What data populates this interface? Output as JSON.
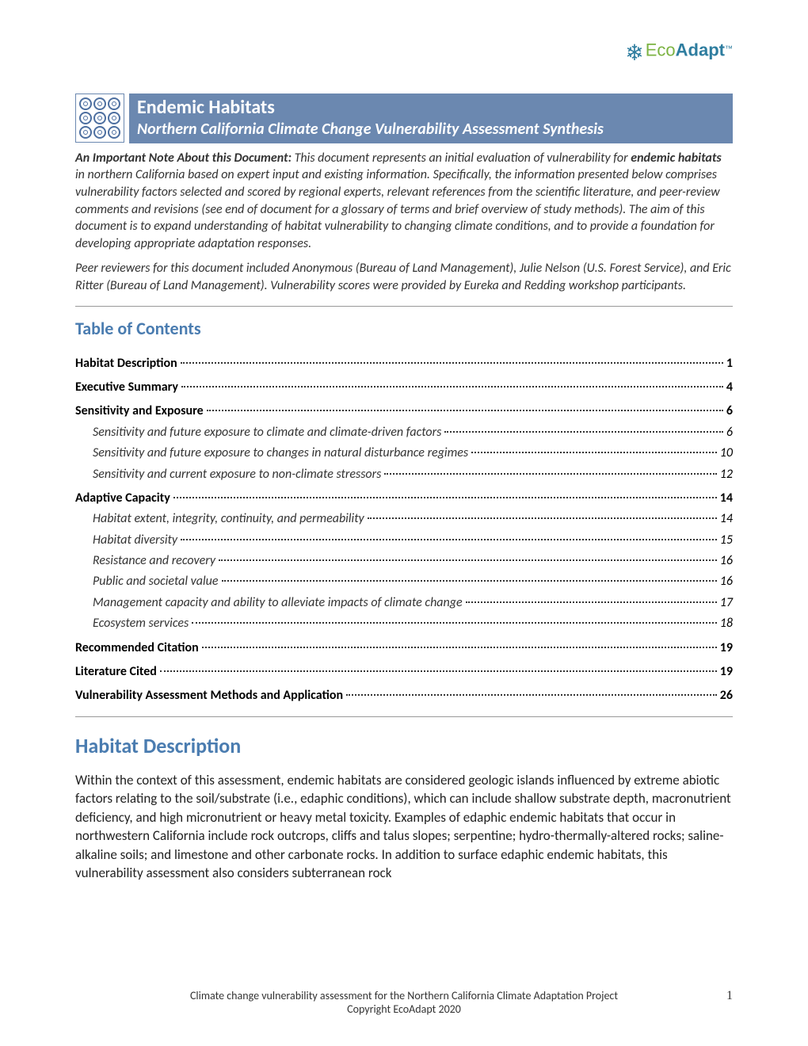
{
  "logo": {
    "eco": "Eco",
    "adapt": "Adapt",
    "tm": "™"
  },
  "title": {
    "main": "Endemic Habitats",
    "sub": "Northern California Climate Change Vulnerability Assessment Synthesis",
    "band_bg": "#6b88b0",
    "text_color": "#ffffff"
  },
  "note": {
    "lead_bold": "An Important Note About this Document:",
    "paragraph1": " This document represents an initial evaluation of vulnerability for ",
    "subject_bold": "endemic habitats",
    "paragraph1b": " in northern California based on expert input and existing information. Specifically, the information presented below comprises vulnerability factors selected and scored by regional experts, relevant references from the scientific literature, and peer-review comments and revisions (see end of document for a glossary of terms and brief overview of study methods). The aim of this document is to expand understanding of habitat vulnerability to changing climate conditions, and to provide a foundation for developing appropriate adaptation responses.",
    "paragraph2": "Peer reviewers for this document included Anonymous (Bureau of Land Management), Julie Nelson (U.S. Forest Service), and Eric Ritter (Bureau of Land Management). Vulnerability scores were provided by Eureka and Redding workshop participants."
  },
  "toc": {
    "heading": "Table of Contents",
    "heading_color": "#4a7cb0",
    "entries": [
      {
        "level": 1,
        "label": "Habitat Description",
        "page": "1"
      },
      {
        "level": 1,
        "label": "Executive Summary",
        "page": "4"
      },
      {
        "level": 1,
        "label": "Sensitivity and Exposure",
        "page": "6"
      },
      {
        "level": 2,
        "label": "Sensitivity and future exposure to climate and climate-driven factors",
        "page": "6"
      },
      {
        "level": 2,
        "label": "Sensitivity and future exposure to changes in natural disturbance regimes",
        "page": "10"
      },
      {
        "level": 2,
        "label": "Sensitivity and current exposure to non-climate stressors",
        "page": "12"
      },
      {
        "level": 1,
        "label": "Adaptive Capacity",
        "page": "14"
      },
      {
        "level": 2,
        "label": "Habitat extent, integrity, continuity, and permeability",
        "page": "14"
      },
      {
        "level": 2,
        "label": "Habitat diversity",
        "page": "15"
      },
      {
        "level": 2,
        "label": "Resistance and recovery",
        "page": "16"
      },
      {
        "level": 2,
        "label": "Public and societal value",
        "page": "16"
      },
      {
        "level": 2,
        "label": "Management capacity and ability to alleviate impacts of climate change",
        "page": "17"
      },
      {
        "level": 2,
        "label": "Ecosystem services",
        "page": "18"
      },
      {
        "level": 1,
        "label": "Recommended Citation",
        "page": "19"
      },
      {
        "level": 1,
        "label": "Literature Cited",
        "page": "19"
      },
      {
        "level": 1,
        "label": "Vulnerability Assessment Methods and Application",
        "page": "26"
      }
    ]
  },
  "section": {
    "heading": "Habitat Description",
    "heading_color": "#4a7cb0",
    "body": "Within the context of this assessment, endemic habitats are considered geologic islands influenced by extreme abiotic factors relating to the soil/substrate (i.e., edaphic conditions), which can include shallow substrate depth, macronutrient deficiency, and high micronutrient or heavy metal toxicity. Examples of edaphic endemic habitats that occur in northwestern California include rock outcrops, cliffs and talus slopes; serpentine; hydro-thermally-altered rocks; saline-alkaline soils; and limestone and other carbonate rocks. In addition to surface edaphic endemic habitats, this vulnerability assessment also considers subterranean rock"
  },
  "footer": {
    "line1": "Climate change vulnerability assessment for the Northern California Climate Adaptation Project",
    "line2": "Copyright EcoAdapt 2020",
    "page_number": "1"
  },
  "colors": {
    "accent_blue": "#4a7cb0",
    "band_blue": "#6b88b0",
    "logo_green": "#7cb342",
    "logo_blue": "#2e7d9f",
    "rule": "#999999",
    "text": "#222222"
  },
  "fonts": {
    "body": "Calibri",
    "title_size_pt": 18,
    "subtitle_size_pt": 15,
    "toc_heading_size_pt": 16,
    "section_heading_size_pt": 20,
    "body_size_pt": 12
  }
}
